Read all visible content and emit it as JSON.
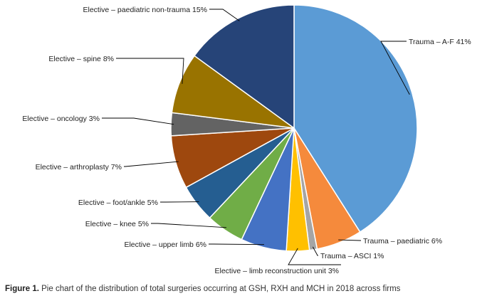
{
  "chart_data": {
    "type": "pie",
    "slices": [
      {
        "label": "Trauma – A-F 41%",
        "value": 41,
        "color": "#5B9BD5"
      },
      {
        "label": "Trauma – paediatric 6%",
        "value": 6,
        "color": "#F58A3C"
      },
      {
        "label": "Trauma – ASCI 1%",
        "value": 1,
        "color": "#A5A5A5"
      },
      {
        "label": "Elective – limb reconstruction unit 3%",
        "value": 3,
        "color": "#FFC000"
      },
      {
        "label": "Elective – upper limb 6%",
        "value": 6,
        "color": "#4472C4"
      },
      {
        "label": "Elective – knee 5%",
        "value": 5,
        "color": "#70AD47"
      },
      {
        "label": "Elective – foot/ankle 5%",
        "value": 5,
        "color": "#255E91"
      },
      {
        "label": "Elective – arthroplasty 7%",
        "value": 7,
        "color": "#9E480E"
      },
      {
        "label": "Elective – oncology 3%",
        "value": 3,
        "color": "#636363"
      },
      {
        "label": "Elective – spine 8%",
        "value": 8,
        "color": "#997300"
      },
      {
        "label": "Elective – paediatric non-trauma 15%",
        "value": 15,
        "color": "#264478"
      }
    ]
  },
  "caption": {
    "figure_label": "Figure 1.",
    "text": " Pie chart of the distribution of total surgeries occurring at GSH, RXH and MCH in 2018 across firms"
  }
}
